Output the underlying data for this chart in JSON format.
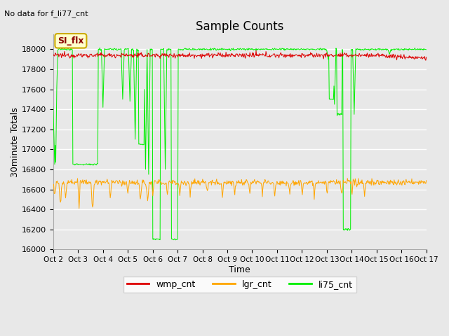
{
  "title": "Sample Counts",
  "subtitle": "No data for f_li77_cnt",
  "xlabel": "Time",
  "ylabel": "30minute Totals",
  "xlim": [
    0,
    15
  ],
  "ylim": [
    16000,
    18150
  ],
  "yticks": [
    16000,
    16200,
    16400,
    16600,
    16800,
    17000,
    17200,
    17400,
    17600,
    17800,
    18000
  ],
  "xtick_labels": [
    "Oct 2",
    "Oct 3",
    "Oct 4",
    "Oct 5",
    "Oct 6",
    "Oct 7",
    "Oct 8",
    "Oct 9",
    "Oct 10",
    "Oct 11",
    "Oct 12",
    "Oct 13",
    "Oct 14",
    "Oct 15",
    "Oct 16",
    "Oct 17"
  ],
  "plot_bg_color": "#e8e8e8",
  "fig_bg_color": "#e8e8e8",
  "wmp_color": "#dd0000",
  "lgr_color": "#ffa500",
  "li75_color": "#00ee00",
  "legend_entries": [
    "wmp_cnt",
    "lgr_cnt",
    "li75_cnt"
  ],
  "annotation_text": "SI_flx",
  "wmp_base": 17940,
  "wmp_noise_std": 12,
  "lgr_base": 16670,
  "lgr_noise_std": 15,
  "li75_base": 18000
}
